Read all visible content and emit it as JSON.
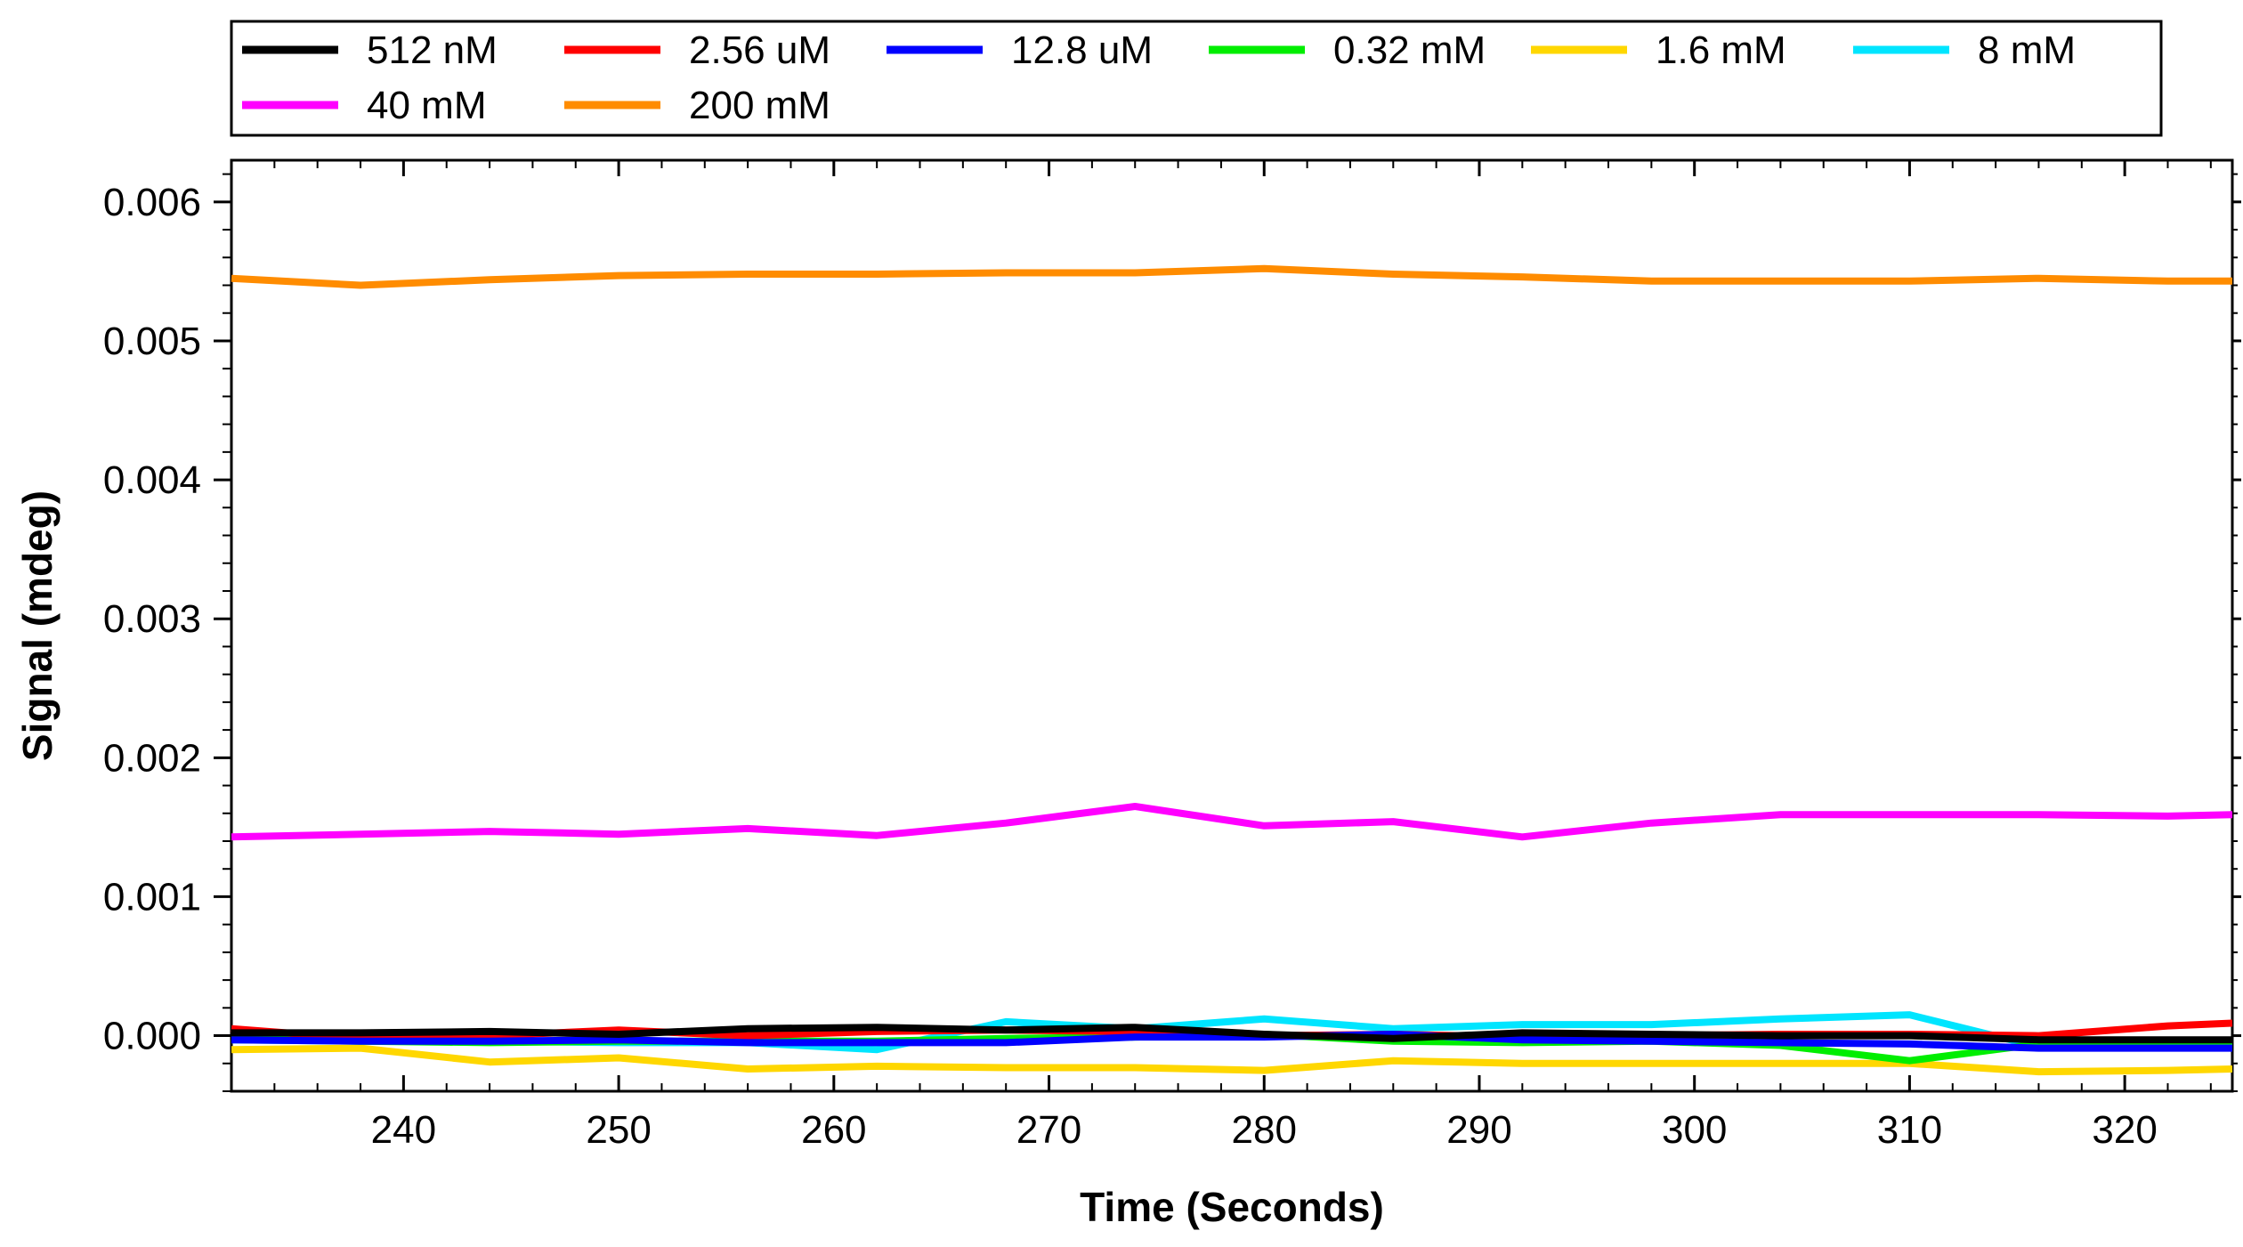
{
  "chart_data": {
    "type": "line",
    "title": "",
    "xlabel": "Time (Seconds)",
    "ylabel": "Signal (mdeg)",
    "xlim": [
      232,
      325
    ],
    "ylim": [
      -0.0004,
      0.0063
    ],
    "x_ticks": [
      240,
      250,
      260,
      270,
      280,
      290,
      300,
      310,
      320
    ],
    "x_tick_labels": [
      "240",
      "250",
      "260",
      "270",
      "280",
      "290",
      "300",
      "310",
      "320"
    ],
    "y_ticks": [
      0.0,
      0.001,
      0.002,
      0.003,
      0.004,
      0.005,
      0.006
    ],
    "y_tick_labels": [
      "0.000",
      "0.001",
      "0.002",
      "0.003",
      "0.004",
      "0.005",
      "0.006"
    ],
    "grid": false,
    "legend_position": "top",
    "x": [
      232,
      238,
      244,
      250,
      256,
      262,
      268,
      274,
      280,
      286,
      292,
      298,
      304,
      310,
      316,
      322,
      325
    ],
    "series": [
      {
        "name": "512 nM",
        "color": "#000000",
        "values": [
          2e-05,
          2e-05,
          3e-05,
          1e-05,
          5e-05,
          6e-05,
          4e-05,
          6e-05,
          1e-05,
          -2e-05,
          2e-05,
          1e-05,
          0.0,
          0.0,
          -3e-05,
          -3e-05,
          -3e-05
        ]
      },
      {
        "name": "2.56 uM",
        "color": "#ff0000",
        "values": [
          5e-05,
          -2e-05,
          0.0,
          4e-05,
          0.0,
          3e-05,
          4e-05,
          3e-05,
          0.0,
          1e-05,
          -1e-05,
          0.0,
          1e-05,
          1e-05,
          0.0,
          7e-05,
          9e-05
        ]
      },
      {
        "name": "12.8 uM",
        "color": "#0000ff",
        "values": [
          -3e-05,
          -4e-05,
          -4e-05,
          -3e-05,
          -5e-05,
          -5e-05,
          -5e-05,
          -1e-05,
          -1e-05,
          1e-05,
          -3e-05,
          -4e-05,
          -5e-05,
          -6e-05,
          -9e-05,
          -9e-05,
          -9e-05
        ]
      },
      {
        "name": "0.32 mM",
        "color": "#00ee00",
        "values": [
          -2e-05,
          -4e-05,
          -5e-05,
          -4e-05,
          -4e-05,
          -4e-05,
          -2e-05,
          -1e-05,
          1e-05,
          -4e-05,
          -5e-05,
          -4e-05,
          -7e-05,
          -0.00018,
          -6e-05,
          -4e-05,
          -4e-05
        ]
      },
      {
        "name": "1.6 mM",
        "color": "#ffd700",
        "values": [
          -0.0001,
          -9e-05,
          -0.00019,
          -0.00016,
          -0.00024,
          -0.00022,
          -0.00023,
          -0.00023,
          -0.00025,
          -0.00018,
          -0.0002,
          -0.0002,
          -0.0002,
          -0.0002,
          -0.00026,
          -0.00025,
          -0.00024
        ]
      },
      {
        "name": "8 mM",
        "color": "#00e5ff",
        "values": [
          -3e-05,
          -4e-05,
          -4e-05,
          -5e-05,
          -5e-05,
          -0.0001,
          0.0001,
          5e-05,
          0.00012,
          5e-05,
          8e-05,
          8e-05,
          0.00012,
          0.00015,
          -8e-05,
          -8e-05,
          -8e-05
        ]
      },
      {
        "name": "40 mM",
        "color": "#ff00ff",
        "values": [
          0.00143,
          0.00145,
          0.00147,
          0.00145,
          0.00149,
          0.00144,
          0.00153,
          0.00165,
          0.00151,
          0.00154,
          0.00143,
          0.00153,
          0.00159,
          0.00159,
          0.00159,
          0.00158,
          0.00159
        ]
      },
      {
        "name": "200 mM",
        "color": "#ff8c00",
        "values": [
          0.00545,
          0.0054,
          0.00544,
          0.00547,
          0.00548,
          0.00548,
          0.00549,
          0.00549,
          0.00552,
          0.00548,
          0.00546,
          0.00543,
          0.00543,
          0.00543,
          0.00545,
          0.00543,
          0.00543
        ]
      }
    ]
  }
}
